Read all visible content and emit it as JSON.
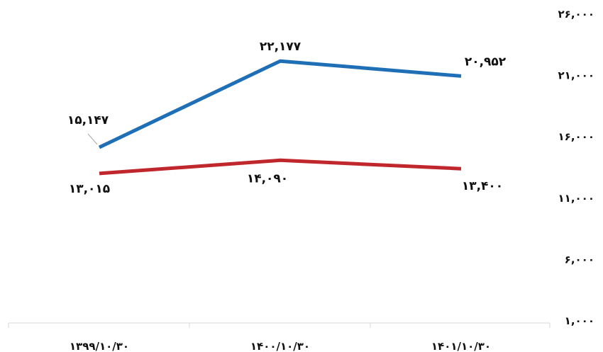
{
  "chart_data": {
    "type": "line",
    "title": "",
    "xlabel": "",
    "ylabel": "",
    "categories": [
      "۱۳۹۹/۱۰/۳۰",
      "۱۴۰۰/۱۰/۳۰",
      "۱۴۰۱/۱۰/۳۰"
    ],
    "y_ticks": [
      "۱,۰۰۰",
      "۶,۰۰۰",
      "۱۱,۰۰۰",
      "۱۶,۰۰۰",
      "۲۱,۰۰۰",
      "۲۶,۰۰۰"
    ],
    "ylim": [
      1000,
      26000
    ],
    "y_axis_position": "right",
    "grid": false,
    "legend": "none",
    "series": [
      {
        "color": "#1f6fb6",
        "values": [
          15147,
          22177,
          20952
        ],
        "data_labels": [
          "۱۵,۱۴۷",
          "۲۲,۱۷۷",
          "۲۰,۹۵۲"
        ]
      },
      {
        "color": "#c0272d",
        "values": [
          13015,
          14090,
          13400
        ],
        "data_labels": [
          "۱۳,۰۱۵",
          "۱۴,۰۹۰",
          "۱۳,۴۰۰"
        ]
      }
    ]
  }
}
